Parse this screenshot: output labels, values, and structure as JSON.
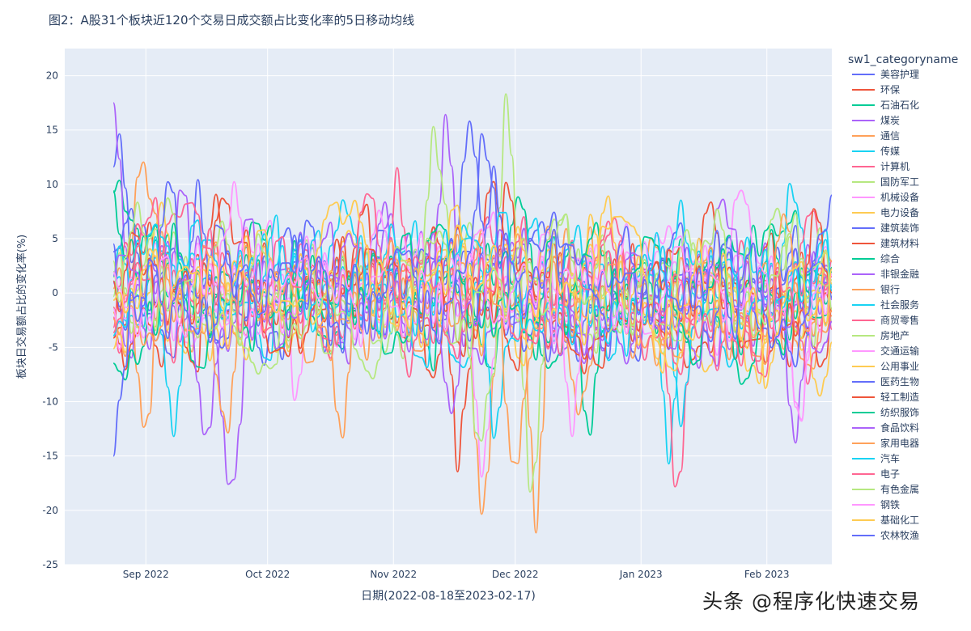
{
  "watermark": "头条 @程序化快速交易",
  "chart_data": {
    "type": "line",
    "title": "图2：A股31个板块近120个交易日成交额占比变化率的5日移动均线",
    "xlabel": "日期(2022-08-18至2023-02-17)",
    "ylabel": "板块日交易额占比的变化率(%)",
    "x_range": [
      "2022-08-18",
      "2023-02-17"
    ],
    "ylim": [
      -25,
      22.5
    ],
    "yticks": [
      -25,
      -20,
      -15,
      -10,
      -5,
      0,
      5,
      10,
      15,
      20
    ],
    "xticks": [
      {
        "date": "2022-09-01",
        "label": "Sep 2022"
      },
      {
        "date": "2022-10-01",
        "label": "Oct 2022"
      },
      {
        "date": "2022-11-01",
        "label": "Nov 2022"
      },
      {
        "date": "2022-12-01",
        "label": "Dec 2022"
      },
      {
        "date": "2023-01-01",
        "label": "Jan 2023"
      },
      {
        "date": "2023-02-01",
        "label": "Feb 2023"
      }
    ],
    "grid": true,
    "legend_title": "sw1_categoryname",
    "legend_position": "right",
    "series": [
      {
        "name": "美容护理",
        "color": "#636efa",
        "peaks": [
          {
            "date": "2022-08-25",
            "value": 17.0
          },
          {
            "date": "2022-10-11",
            "value": 7.8
          },
          {
            "date": "2022-12-07",
            "value": 6.8
          }
        ]
      },
      {
        "name": "环保",
        "color": "#EF553B",
        "peaks": [
          {
            "date": "2022-10-25",
            "value": 9.5
          },
          {
            "date": "2022-11-17",
            "value": -17.4
          },
          {
            "date": "2022-11-25",
            "value": 12.0
          }
        ]
      },
      {
        "name": "石油石化",
        "color": "#00cc96",
        "peaks": [
          {
            "date": "2022-08-25",
            "value": 11.5
          },
          {
            "date": "2022-12-02",
            "value": 9.5
          },
          {
            "date": "2022-12-19",
            "value": -15.8
          }
        ]
      },
      {
        "name": "煤炭",
        "color": "#ab63fa",
        "peaks": [
          {
            "date": "2022-08-24",
            "value": 17.5
          },
          {
            "date": "2022-09-22",
            "value": -20.8
          },
          {
            "date": "2022-11-14",
            "value": 17.2
          }
        ]
      },
      {
        "name": "通信",
        "color": "#FFA15A",
        "peaks": [
          {
            "date": "2022-08-31",
            "value": 13.2
          },
          {
            "date": "2022-11-23",
            "value": -21.8
          },
          {
            "date": "2022-12-06",
            "value": -22.8
          }
        ]
      },
      {
        "name": "传媒",
        "color": "#19d3f3",
        "peaks": [
          {
            "date": "2022-10-20",
            "value": 9.4
          },
          {
            "date": "2023-01-08",
            "value": -16.6
          },
          {
            "date": "2023-02-07",
            "value": 11.0
          }
        ]
      },
      {
        "name": "计算机",
        "color": "#FF6692",
        "peaks": [
          {
            "date": "2022-11-02",
            "value": 11.8
          },
          {
            "date": "2023-01-10",
            "value": -20.8
          },
          {
            "date": "2023-02-12",
            "value": 9.2
          }
        ]
      },
      {
        "name": "国防军工",
        "color": "#B6E880",
        "peaks": [
          {
            "date": "2022-11-11",
            "value": 16.0
          },
          {
            "date": "2022-11-29",
            "value": 20.2
          },
          {
            "date": "2022-12-05",
            "value": -20.3
          }
        ]
      },
      {
        "name": "机械设备",
        "color": "#FF97FF",
        "peaks": [
          {
            "date": "2022-10-08",
            "value": -11.6
          },
          {
            "date": "2022-11-23",
            "value": -18.2
          },
          {
            "date": "2023-01-25",
            "value": 10.5
          }
        ]
      },
      {
        "name": "电力设备",
        "color": "#FECB52",
        "peaks": [
          {
            "date": "2022-09-05",
            "value": 8.5
          },
          {
            "date": "2022-12-20",
            "value": 8.9
          },
          {
            "date": "2023-02-14",
            "value": -9.5
          }
        ]
      },
      {
        "name": "建筑装饰",
        "color": "#636efa",
        "peaks": [
          {
            "date": "2022-09-14",
            "value": 11.2
          },
          {
            "date": "2022-11-20",
            "value": 16.5
          },
          {
            "date": "2022-12-09",
            "value": -6.5
          }
        ]
      },
      {
        "name": "建筑材料",
        "color": "#EF553B",
        "peaks": [
          {
            "date": "2022-09-18",
            "value": 9.8
          },
          {
            "date": "2022-11-10",
            "value": -9.5
          },
          {
            "date": "2023-01-18",
            "value": 9.0
          }
        ]
      },
      {
        "name": "综合",
        "color": "#00cc96",
        "peaks": [
          {
            "date": "2022-08-24",
            "value": 9.4
          },
          {
            "date": "2022-10-04",
            "value": -6.5
          },
          {
            "date": "2022-12-21",
            "value": 6.5
          }
        ]
      },
      {
        "name": "非银金融",
        "color": "#ab63fa",
        "peaks": [
          {
            "date": "2022-09-10",
            "value": 11.5
          },
          {
            "date": "2022-10-30",
            "value": 8.5
          },
          {
            "date": "2023-02-08",
            "value": -14.0
          }
        ]
      },
      {
        "name": "银行",
        "color": "#FFA15A",
        "peaks": [
          {
            "date": "2022-09-01",
            "value": -15.0
          },
          {
            "date": "2022-10-19",
            "value": -15.3
          },
          {
            "date": "2022-12-17",
            "value": -12.5
          }
        ]
      },
      {
        "name": "社会服务",
        "color": "#19d3f3",
        "peaks": [
          {
            "date": "2022-09-08",
            "value": -13.5
          },
          {
            "date": "2022-11-26",
            "value": -14.4
          },
          {
            "date": "2023-01-11",
            "value": -13.0
          }
        ]
      },
      {
        "name": "商贸零售",
        "color": "#FF6692",
        "peaks": [
          {
            "date": "2022-09-13",
            "value": 8.5
          },
          {
            "date": "2022-11-05",
            "value": -8.0
          },
          {
            "date": "2023-01-20",
            "value": -7.5
          }
        ]
      },
      {
        "name": "房地产",
        "color": "#B6E880",
        "peaks": [
          {
            "date": "2022-09-06",
            "value": 9.5
          },
          {
            "date": "2022-11-22",
            "value": -15.5
          },
          {
            "date": "2023-02-03",
            "value": 8.8
          }
        ]
      },
      {
        "name": "交通运输",
        "color": "#FF97FF",
        "peaks": [
          {
            "date": "2022-10-28",
            "value": 9.0
          },
          {
            "date": "2022-12-15",
            "value": -13.3
          },
          {
            "date": "2023-02-09",
            "value": -13.0
          }
        ]
      },
      {
        "name": "公用事业",
        "color": "#FECB52",
        "peaks": [
          {
            "date": "2022-11-16",
            "value": 8.5
          },
          {
            "date": "2022-12-24",
            "value": 9.0
          },
          {
            "date": "2023-01-30",
            "value": -8.5
          }
        ]
      },
      {
        "name": "医药生物",
        "color": "#636efa",
        "peaks": [
          {
            "date": "2022-09-07",
            "value": 12.0
          },
          {
            "date": "2022-11-26",
            "value": 13.0
          },
          {
            "date": "2022-12-28",
            "value": 7.0
          }
        ]
      },
      {
        "name": "轻工制造",
        "color": "#EF553B",
        "peaks": [
          {
            "date": "2022-09-20",
            "value": 9.0
          },
          {
            "date": "2022-11-29",
            "value": 11.0
          },
          {
            "date": "2023-02-13",
            "value": 8.5
          }
        ]
      },
      {
        "name": "纺织服饰",
        "color": "#00cc96",
        "peaks": [
          {
            "date": "2022-09-08",
            "value": 6.8
          },
          {
            "date": "2022-12-10",
            "value": 7.0
          },
          {
            "date": "2023-01-26",
            "value": -9.0
          }
        ]
      },
      {
        "name": "食品饮料",
        "color": "#ab63fa",
        "peaks": [
          {
            "date": "2022-09-16",
            "value": -15.8
          },
          {
            "date": "2022-11-15",
            "value": -12.0
          },
          {
            "date": "2023-01-21",
            "value": 9.0
          }
        ]
      },
      {
        "name": "家用电器",
        "color": "#FFA15A",
        "peaks": [
          {
            "date": "2022-09-21",
            "value": -13.8
          },
          {
            "date": "2022-12-01",
            "value": -17.9
          },
          {
            "date": "2023-02-05",
            "value": 7.5
          }
        ]
      },
      {
        "name": "汽车",
        "color": "#19d3f3",
        "peaks": [
          {
            "date": "2022-09-03",
            "value": 6.5
          },
          {
            "date": "2022-11-28",
            "value": 9.4
          },
          {
            "date": "2023-01-11",
            "value": 9.0
          }
        ]
      },
      {
        "name": "电子",
        "color": "#FF6692",
        "peaks": [
          {
            "date": "2022-09-03",
            "value": 9.8
          },
          {
            "date": "2022-10-26",
            "value": 9.5
          },
          {
            "date": "2023-02-11",
            "value": -8.5
          }
        ]
      },
      {
        "name": "有色金属",
        "color": "#B6E880",
        "peaks": [
          {
            "date": "2022-08-30",
            "value": 8.5
          },
          {
            "date": "2022-12-13",
            "value": 9.0
          },
          {
            "date": "2023-01-20",
            "value": 8.3
          }
        ]
      },
      {
        "name": "钢铁",
        "color": "#FF97FF",
        "peaks": [
          {
            "date": "2022-08-19",
            "value": -2.5
          },
          {
            "date": "2022-09-23",
            "value": 11.0
          },
          {
            "date": "2023-02-09",
            "value": -13.0
          }
        ]
      },
      {
        "name": "基础化工",
        "color": "#FECB52",
        "peaks": [
          {
            "date": "2022-10-22",
            "value": 9.0
          },
          {
            "date": "2022-12-26",
            "value": 8.5
          },
          {
            "date": "2023-02-01",
            "value": -10.0
          }
        ]
      },
      {
        "name": "农林牧渔",
        "color": "#636efa",
        "peaks": [
          {
            "date": "2022-08-24",
            "value": -15.0
          },
          {
            "date": "2022-11-23",
            "value": 15.5
          },
          {
            "date": "2023-02-17",
            "value": 9.0
          }
        ]
      }
    ]
  }
}
